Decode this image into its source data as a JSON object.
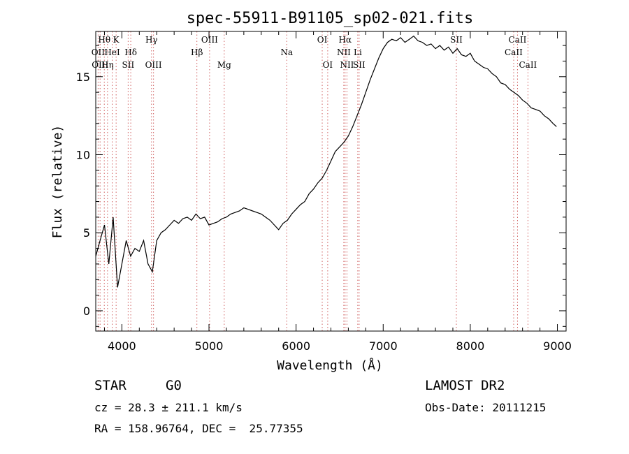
{
  "chart_data": {
    "type": "line",
    "title": "spec-55911-B91105_sp02-021.fits",
    "xlabel": "Wavelength (Å)",
    "ylabel": "Flux (relative)",
    "xlim": [
      3700,
      9100
    ],
    "ylim": [
      -1.3,
      17.9
    ],
    "x_ticks": [
      4000,
      5000,
      6000,
      7000,
      8000,
      9000
    ],
    "y_ticks": [
      0,
      5,
      10,
      15
    ],
    "grid": false,
    "line_color": "#000000",
    "marker_line_color": "#d06060",
    "series": [
      {
        "x": [
          3700,
          3750,
          3800,
          3850,
          3900,
          3950,
          4000,
          4050,
          4100,
          4150,
          4200,
          4250,
          4300,
          4350,
          4400,
          4450,
          4500,
          4550,
          4600,
          4650,
          4700,
          4750,
          4800,
          4850,
          4900,
          4950,
          5000,
          5050,
          5100,
          5150,
          5200,
          5250,
          5300,
          5350,
          5400,
          5450,
          5500,
          5550,
          5600,
          5650,
          5700,
          5750,
          5800,
          5850,
          5900,
          5950,
          6000,
          6050,
          6100,
          6150,
          6200,
          6250,
          6300,
          6350,
          6400,
          6450,
          6500,
          6550,
          6600,
          6650,
          6700,
          6750,
          6800,
          6850,
          6900,
          6950,
          7000,
          7050,
          7100,
          7150,
          7200,
          7250,
          7300,
          7350,
          7400,
          7450,
          7500,
          7550,
          7600,
          7650,
          7700,
          7750,
          7800,
          7850,
          7900,
          7950,
          8000,
          8050,
          8100,
          8150,
          8200,
          8250,
          8300,
          8350,
          8400,
          8450,
          8500,
          8550,
          8600,
          8650,
          8700,
          8750,
          8800,
          8850,
          8900,
          8950,
          8990
        ],
        "y": [
          3.5,
          4.5,
          5.5,
          3.0,
          6.0,
          1.5,
          3.0,
          4.5,
          3.5,
          4.0,
          3.8,
          4.5,
          3.0,
          2.5,
          4.5,
          5.0,
          5.2,
          5.5,
          5.8,
          5.6,
          5.9,
          6.0,
          5.8,
          6.2,
          5.9,
          6.0,
          5.5,
          5.6,
          5.7,
          5.9,
          6.0,
          6.2,
          6.3,
          6.4,
          6.6,
          6.5,
          6.4,
          6.3,
          6.2,
          6.0,
          5.8,
          5.5,
          5.2,
          5.6,
          5.8,
          6.2,
          6.5,
          6.8,
          7.0,
          7.5,
          7.8,
          8.2,
          8.5,
          9.0,
          9.6,
          10.2,
          10.5,
          10.8,
          11.2,
          11.8,
          12.5,
          13.2,
          14.0,
          14.8,
          15.5,
          16.2,
          16.8,
          17.2,
          17.4,
          17.3,
          17.5,
          17.2,
          17.4,
          17.6,
          17.3,
          17.2,
          17.0,
          17.1,
          16.8,
          17.0,
          16.7,
          16.9,
          16.5,
          16.8,
          16.4,
          16.3,
          16.5,
          16.0,
          15.8,
          15.6,
          15.5,
          15.2,
          15.0,
          14.6,
          14.5,
          14.2,
          14.0,
          13.8,
          13.5,
          13.3,
          13.0,
          12.9,
          12.8,
          12.5,
          12.3,
          12.0,
          11.8
        ]
      }
    ],
    "lines": [
      {
        "wave": 3727,
        "label": "OII",
        "row": 2
      },
      {
        "wave": 3750,
        "label": "OIII",
        "row": 3
      },
      {
        "wave": 3798,
        "label": "Hθ",
        "row": 1
      },
      {
        "wave": 3835,
        "label": "Hη",
        "row": 3
      },
      {
        "wave": 3889,
        "label": "HeI",
        "row": 2
      },
      {
        "wave": 3934,
        "label": "K",
        "row": 1
      },
      {
        "wave": 4072,
        "label": "SII",
        "row": 3
      },
      {
        "wave": 4102,
        "label": "Hδ",
        "row": 2
      },
      {
        "wave": 4340,
        "label": "Hγ",
        "row": 1
      },
      {
        "wave": 4363,
        "label": "OIII",
        "row": 3
      },
      {
        "wave": 4861,
        "label": "Hβ",
        "row": 2
      },
      {
        "wave": 5007,
        "label": "OIII",
        "row": 1
      },
      {
        "wave": 5175,
        "label": "Mg",
        "row": 3
      },
      {
        "wave": 5893,
        "label": "Na",
        "row": 2
      },
      {
        "wave": 6300,
        "label": "OI",
        "row": 1
      },
      {
        "wave": 6363,
        "label": "OI",
        "row": 3
      },
      {
        "wave": 6548,
        "label": "NII",
        "row": 2
      },
      {
        "wave": 6563,
        "label": "Hα",
        "row": 1
      },
      {
        "wave": 6584,
        "label": "NII",
        "row": 3
      },
      {
        "wave": 6708,
        "label": "Li",
        "row": 2
      },
      {
        "wave": 6724,
        "label": "SII",
        "row": 3
      },
      {
        "wave": 7840,
        "label": "SII",
        "row": 1
      },
      {
        "wave": 8498,
        "label": "CaII",
        "row": 2
      },
      {
        "wave": 8542,
        "label": "CaII",
        "row": 1
      },
      {
        "wave": 8662,
        "label": "CaII",
        "row": 3
      }
    ]
  },
  "info": {
    "class": "STAR",
    "subclass": "G0",
    "survey": "LAMOST DR2",
    "cz": "cz = 28.3 ± 211.1 km/s",
    "obs_date": "Obs-Date: 20111215",
    "radec": "RA = 158.96764, DEC =  25.77355"
  }
}
